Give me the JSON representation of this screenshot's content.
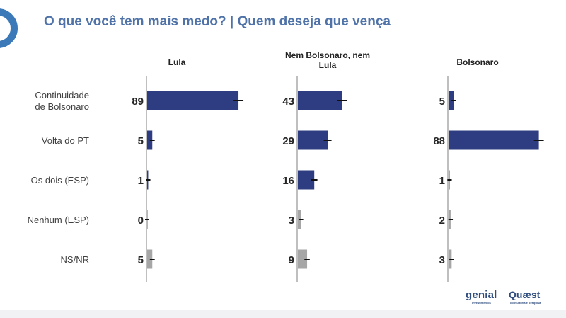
{
  "header": {
    "title": "O que você tem mais medo? | Quem deseja que vença"
  },
  "brands": {
    "genial": "genial",
    "genial_sub": "investimentos",
    "quaest": "Quæst",
    "quaest_sub": "consultoria e pesquisa"
  },
  "colors": {
    "title": "#4f73a8",
    "bar_main": "#2e3d82",
    "bar_secondary": "#a6a6a6",
    "axis": "#bfbfbf",
    "logo": "#3b79b8"
  },
  "chart_data": {
    "type": "bar",
    "orientation": "horizontal",
    "categories": [
      "Continuidade de Bolsonaro",
      "Volta do PT",
      "Os dois (ESP)",
      "Nenhum (ESP)",
      "NS/NR"
    ],
    "series": [
      {
        "name": "Lula",
        "values": [
          89,
          5,
          1,
          0,
          5
        ]
      },
      {
        "name": "Nem Bolsonaro, nem Lula",
        "values": [
          43,
          29,
          16,
          3,
          9
        ]
      },
      {
        "name": "Bolsonaro",
        "values": [
          5,
          88,
          1,
          2,
          3
        ]
      }
    ],
    "error_bars": true,
    "xlim": [
      0,
      100
    ],
    "grid": false,
    "legend": "none"
  }
}
